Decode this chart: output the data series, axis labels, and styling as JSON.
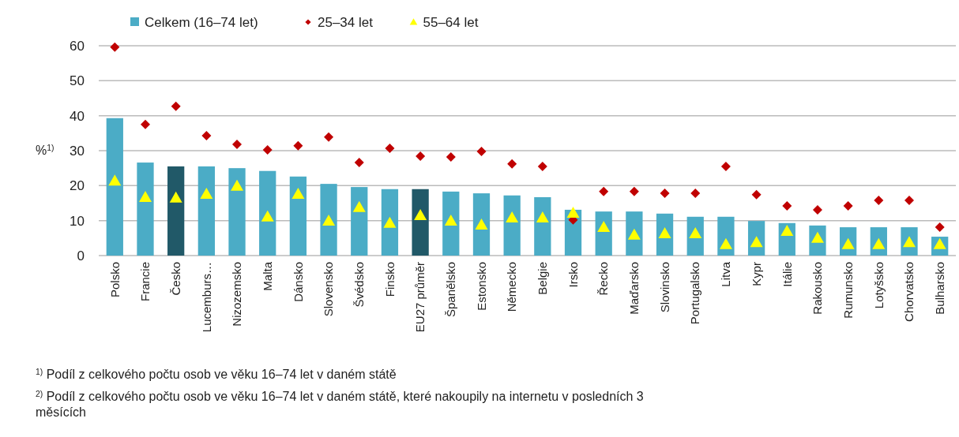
{
  "chart_data": {
    "type": "bar",
    "categories": [
      "Polsko",
      "Francie",
      "Česko",
      "Lucemburs…",
      "Nizozemsko",
      "Malta",
      "Dánsko",
      "Slovensko",
      "Švédsko",
      "Finsko",
      "EU27 průměr",
      "Španělsko",
      "Estonsko",
      "Německo",
      "Belgie",
      "Irsko",
      "Řecko",
      "Maďarsko",
      "Slovinsko",
      "Portugalsko",
      "Litva",
      "Kypr",
      "Itálie",
      "Rakousko",
      "Rumunsko",
      "Lotyšsko",
      "Chorvatsko",
      "Bulharsko"
    ],
    "series": [
      {
        "name": "Celkem (16–74 let)",
        "color": "#4bacc6",
        "colors": [
          "#4bacc6",
          "#4bacc6",
          "#215968",
          "#4bacc6",
          "#4bacc6",
          "#4bacc6",
          "#4bacc6",
          "#4bacc6",
          "#4bacc6",
          "#4bacc6",
          "#215968",
          "#4bacc6",
          "#4bacc6",
          "#4bacc6",
          "#4bacc6",
          "#4bacc6",
          "#4bacc6",
          "#4bacc6",
          "#4bacc6",
          "#4bacc6",
          "#4bacc6",
          "#4bacc6",
          "#4bacc6",
          "#4bacc6",
          "#4bacc6",
          "#4bacc6",
          "#4bacc6",
          "#4bacc6"
        ],
        "values": [
          39.3,
          26.6,
          25.5,
          25.5,
          25,
          24.2,
          22.6,
          20.5,
          19.6,
          19,
          19,
          18.3,
          17.8,
          17.2,
          16.7,
          13.1,
          12.6,
          12.6,
          12,
          11.1,
          11.1,
          9.9,
          9.3,
          8.6,
          8.1,
          8.1,
          8.1,
          5.4
        ]
      },
      {
        "name": "25–34 let",
        "type": "scatter",
        "marker": "diamond",
        "color": "#c00000",
        "values": [
          59.6,
          37.5,
          42.7,
          34.3,
          31.8,
          30.2,
          31.4,
          33.9,
          26.6,
          30.7,
          28.4,
          28.2,
          29.8,
          26.2,
          25.5,
          10.2,
          18.3,
          18.3,
          17.8,
          17.8,
          25.5,
          17.4,
          14.2,
          13.1,
          14.2,
          15.8,
          15.8,
          8.1
        ]
      },
      {
        "name": "55–64 let",
        "type": "scatter",
        "marker": "triangle",
        "color": "#ffff00",
        "values": [
          21.4,
          16.7,
          16.5,
          17.6,
          19.9,
          11.1,
          17.6,
          9.9,
          13.8,
          9.3,
          11.5,
          9.9,
          8.8,
          10.8,
          10.8,
          12.2,
          8.1,
          5.9,
          6.3,
          6.3,
          3.2,
          3.8,
          7,
          5,
          3.2,
          3.2,
          3.8,
          3.2
        ]
      }
    ],
    "ylabel": "%$^{1)}$",
    "ylim": [
      0,
      60
    ],
    "yticks": [
      0,
      10,
      20,
      30,
      40,
      50,
      60
    ],
    "grid": "y",
    "legend": "top",
    "annotations": [
      "$^{1)}$ Podíl z celkového počtu osob ve věku 16–74 let v daném státě",
      "$^{2)}$ Podíl z celkového počtu osob ve věku 16–74 let v daném státě, které nakoupily na internetu v posledních 3 měsících"
    ]
  }
}
